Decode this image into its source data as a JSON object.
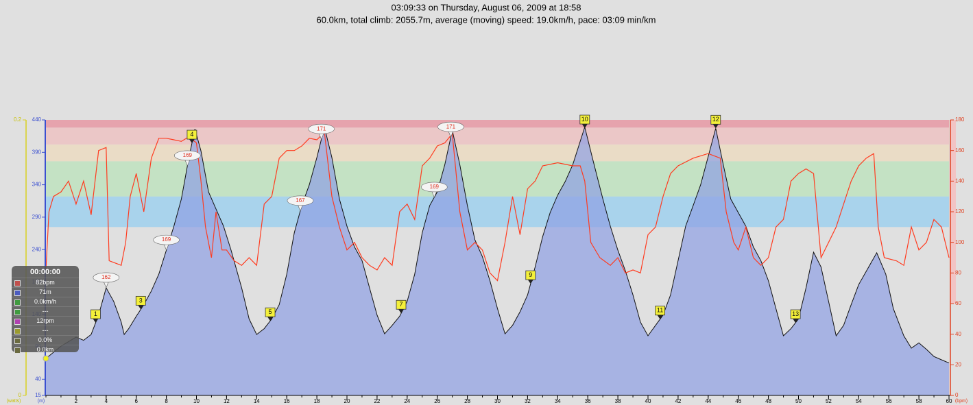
{
  "chart_data": {
    "type": "area",
    "title": "03:09:33 on Thursday, August 06, 2009 at 18:58",
    "subtitle": "60.0km, total climb: 2055.7m, average (moving) speed: 19.0km/h, pace: 03:09 min/km",
    "xlim": [
      0,
      60
    ],
    "xticks": [
      2,
      4,
      6,
      8,
      10,
      12,
      14,
      16,
      18,
      20,
      22,
      24,
      26,
      28,
      30,
      32,
      34,
      36,
      38,
      40,
      42,
      44,
      46,
      48,
      50,
      52,
      54,
      56,
      58,
      60
    ],
    "ylim": [
      15,
      440
    ],
    "yticks": [
      15,
      40,
      90,
      140,
      190,
      240,
      290,
      340,
      390,
      440
    ],
    "y2lim": [
      0,
      180
    ],
    "y2ticks": [
      0,
      20,
      40,
      60,
      80,
      100,
      120,
      140,
      160,
      180
    ],
    "y3lim": [
      0,
      0.2
    ],
    "y3ticks": [
      0,
      0.2
    ],
    "y_label": "(m)",
    "y2_label": "(bpm)",
    "y3_label": "(watts)",
    "hr_zones": [
      {
        "range": [
          110,
          130
        ],
        "color": "#a9d3ec"
      },
      {
        "range": [
          130,
          153
        ],
        "color": "#c4e2c4"
      },
      {
        "range": [
          153,
          164
        ],
        "color": "#eadcc6"
      },
      {
        "range": [
          164,
          175
        ],
        "color": "#ebc7c7"
      },
      {
        "range": [
          175,
          180
        ],
        "color": "#e6a3ad"
      }
    ],
    "series": [
      {
        "color": "#8fa0e4",
        "axis": "y",
        "x": [
          0,
          1,
          2,
          2.5,
          3,
          3.5,
          4,
          4.5,
          5,
          5.2,
          5.5,
          6,
          6.5,
          7,
          7.5,
          8,
          8.5,
          9,
          9.5,
          9.9,
          10.3,
          10.8,
          11.2,
          11.8,
          12.3,
          13,
          13.5,
          14,
          14.5,
          15,
          15.5,
          16,
          16.5,
          17,
          17.5,
          18,
          18.5,
          19,
          19.5,
          20,
          20.5,
          21,
          21.5,
          22,
          22.5,
          23,
          23.5,
          24,
          24.5,
          25,
          25.5,
          26,
          26.5,
          27,
          27.5,
          28,
          28.5,
          29,
          29.5,
          30,
          30.5,
          31,
          31.5,
          32,
          32.5,
          33,
          33.5,
          34,
          34.5,
          35,
          35.8,
          36.3,
          37,
          37.5,
          38,
          38.5,
          39,
          39.5,
          40,
          40.5,
          41,
          41.5,
          42,
          42.5,
          43,
          43.5,
          44.5,
          45,
          45.5,
          46,
          46.5,
          47,
          47.5,
          48,
          48.5,
          49,
          49.5,
          50,
          50.5,
          51,
          51.5,
          52,
          52.5,
          53,
          53.5,
          54,
          55.2,
          55.8,
          56.3,
          57,
          57.5,
          58,
          58.5,
          59,
          59.5,
          60
        ],
        "values": [
          72,
          91,
          105,
          100,
          109,
          139,
          181,
          160,
          128,
          109,
          118,
          137,
          155,
          176,
          202,
          239,
          276,
          318,
          382,
          426,
          392,
          329,
          308,
          276,
          239,
          181,
          133,
          109,
          118,
          133,
          155,
          202,
          266,
          308,
          340,
          382,
          429,
          382,
          318,
          276,
          244,
          223,
          181,
          139,
          110,
          123,
          137,
          160,
          202,
          266,
          308,
          329,
          371,
          424,
          371,
          308,
          255,
          229,
          192,
          149,
          110,
          123,
          144,
          170,
          213,
          260,
          297,
          324,
          345,
          371,
          429,
          382,
          318,
          276,
          239,
          207,
          170,
          128,
          107,
          123,
          139,
          170,
          223,
          276,
          308,
          340,
          427,
          371,
          318,
          297,
          276,
          244,
          223,
          192,
          149,
          107,
          118,
          133,
          181,
          236,
          213,
          160,
          107,
          123,
          155,
          186,
          235,
          202,
          149,
          107,
          88,
          96,
          86,
          75,
          70,
          65
        ]
      },
      {
        "color": "#ff3b1f",
        "axis": "y2",
        "x": [
          0,
          0.2,
          0.5,
          1,
          1.5,
          2,
          2.5,
          3,
          3.5,
          4,
          4.2,
          5,
          5.3,
          5.6,
          6,
          6.5,
          7,
          7.5,
          8,
          8.5,
          9,
          9.5,
          10,
          10.3,
          10.6,
          11,
          11.3,
          11.7,
          12,
          12.5,
          13,
          13.5,
          14,
          14.5,
          15,
          15.5,
          16,
          16.5,
          17,
          17.5,
          18,
          18.5,
          19,
          19.5,
          20,
          20.5,
          21,
          21.5,
          22,
          22.5,
          23,
          23.5,
          24,
          24.5,
          25,
          25.5,
          26,
          26.5,
          27,
          27.5,
          28,
          28.5,
          29,
          29.5,
          30,
          30.5,
          31,
          31.5,
          32,
          32.5,
          33,
          34,
          35,
          35.5,
          35.8,
          36.2,
          36.8,
          37.5,
          38,
          38.5,
          39,
          39.5,
          40,
          40.5,
          41,
          41.5,
          42,
          43,
          44,
          44.8,
          45.2,
          45.7,
          46,
          46.5,
          47,
          47.5,
          48,
          48.5,
          49,
          49.5,
          50,
          50.5,
          51,
          51.5,
          52,
          52.5,
          53,
          53.5,
          54,
          54.5,
          55,
          55.3,
          55.7,
          56.5,
          57,
          57.5,
          58,
          58.5,
          59,
          59.5,
          60
        ],
        "values": [
          82,
          120,
          130,
          133,
          140,
          125,
          140,
          118,
          160,
          162,
          88,
          85,
          100,
          130,
          145,
          120,
          155,
          168,
          168,
          167,
          166,
          169,
          165,
          140,
          110,
          90,
          120,
          95,
          95,
          88,
          85,
          90,
          85,
          125,
          130,
          155,
          160,
          160,
          163,
          168,
          167,
          172,
          130,
          110,
          95,
          100,
          90,
          85,
          82,
          90,
          85,
          120,
          125,
          115,
          150,
          155,
          163,
          165,
          171,
          120,
          95,
          100,
          95,
          80,
          75,
          100,
          130,
          105,
          135,
          140,
          150,
          152,
          150,
          150,
          140,
          100,
          90,
          85,
          90,
          80,
          82,
          80,
          105,
          110,
          130,
          145,
          150,
          155,
          158,
          155,
          120,
          100,
          95,
          110,
          90,
          85,
          90,
          110,
          115,
          140,
          145,
          148,
          145,
          90,
          100,
          110,
          125,
          140,
          150,
          155,
          158,
          110,
          90,
          88,
          85,
          110,
          95,
          100,
          115,
          110,
          90
        ]
      }
    ],
    "laps": [
      {
        "label": 1,
        "x": 3.3
      },
      {
        "label": 3,
        "x": 6.3
      },
      {
        "label": 4,
        "x": 9.7
      },
      {
        "label": 5,
        "x": 14.9
      },
      {
        "label": 7,
        "x": 23.6
      },
      {
        "label": 9,
        "x": 32.2
      },
      {
        "label": 10,
        "x": 35.8
      },
      {
        "label": 11,
        "x": 40.8
      },
      {
        "label": 12,
        "x": 44.5
      },
      {
        "label": 13,
        "x": 49.8
      }
    ],
    "hr_callouts": [
      {
        "value": 162,
        "x": 4.0
      },
      {
        "value": 169,
        "x": 8.0
      },
      {
        "value": 169,
        "x": 9.4
      },
      {
        "value": 167,
        "x": 16.9
      },
      {
        "value": 171,
        "x": 18.3
      },
      {
        "value": 169,
        "x": 25.8
      },
      {
        "value": 171,
        "x": 26.9
      }
    ],
    "info_panel": {
      "time": "00:00:00",
      "rows": [
        {
          "color": "#c0504d",
          "text": "82bpm"
        },
        {
          "color": "#4b5bbf",
          "text": "71m"
        },
        {
          "color": "#3f9a3f",
          "text": "0.0km/h"
        },
        {
          "color": "#3f9a3f",
          "text": "---"
        },
        {
          "color": "#b040b0",
          "text": "12rpm"
        },
        {
          "color": "#9a9a30",
          "text": "---"
        },
        {
          "color": "#6a6a40",
          "text": "0.0%"
        },
        {
          "color": "#6a6a40",
          "text": "0.0km"
        }
      ]
    }
  }
}
